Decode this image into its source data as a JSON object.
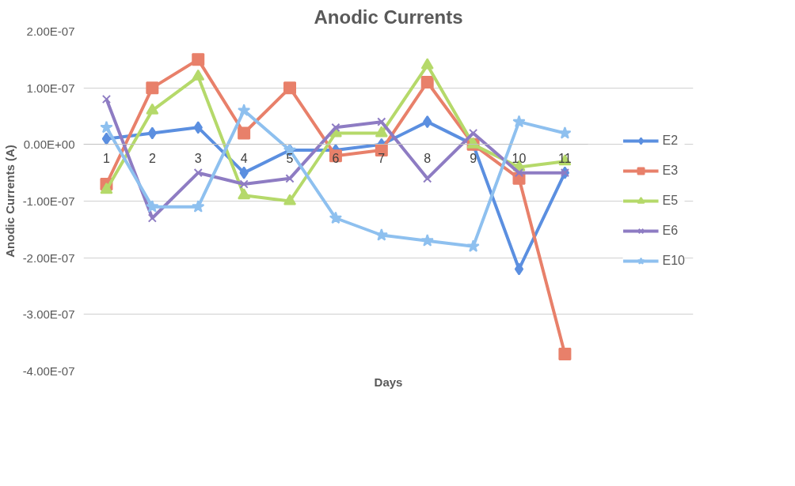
{
  "chart_data": {
    "type": "line",
    "title": "Anodic Currents",
    "xlabel": "Days",
    "ylabel": "Anodic Currents (A)",
    "categories": [
      "1",
      "2",
      "3",
      "4",
      "5",
      "6",
      "7",
      "8",
      "9",
      "10",
      "11"
    ],
    "series": [
      {
        "name": "E2",
        "color": "#5b8fe0",
        "marker": "diamond",
        "values": [
          1e-08,
          2e-08,
          3e-08,
          -5e-08,
          -1e-08,
          -1e-08,
          0.0,
          4e-08,
          0.0,
          -2.2e-07,
          -5e-08
        ]
      },
      {
        "name": "E3",
        "color": "#e8806a",
        "marker": "square",
        "values": [
          -7e-08,
          1e-07,
          1.5e-07,
          2e-08,
          1e-07,
          -2e-08,
          -1e-08,
          1.1e-07,
          0.0,
          -6e-08,
          -3.7e-07
        ]
      },
      {
        "name": "E5",
        "color": "#b5d96a",
        "marker": "triangle",
        "values": [
          -8e-08,
          6e-08,
          1.2e-07,
          -9e-08,
          -1e-07,
          2e-08,
          2e-08,
          1.4e-07,
          0.0,
          -4e-08,
          -3e-08
        ]
      },
      {
        "name": "E6",
        "color": "#8e7cc3",
        "marker": "cross",
        "values": [
          8e-08,
          -1.3e-07,
          -5e-08,
          -7e-08,
          -6e-08,
          3e-08,
          4e-08,
          -6e-08,
          2e-08,
          -5e-08,
          -5e-08
        ]
      },
      {
        "name": "E10",
        "color": "#8ec0ef",
        "marker": "star",
        "values": [
          3e-08,
          -1.1e-07,
          -1.1e-07,
          6e-08,
          -1e-08,
          -1.3e-07,
          -1.6e-07,
          -1.7e-07,
          -1.8e-07,
          4e-08,
          2e-08
        ]
      }
    ],
    "ylim": [
      -4e-07,
      2e-07
    ],
    "yticks": [
      {
        "value": -4e-07,
        "label": "-4.00E-07"
      },
      {
        "value": -3e-07,
        "label": "-3.00E-07"
      },
      {
        "value": -2e-07,
        "label": "-2.00E-07"
      },
      {
        "value": -1e-07,
        "label": "-1.00E-07"
      },
      {
        "value": 0,
        "label": "0.00E+00"
      },
      {
        "value": 1e-07,
        "label": "1.00E-07"
      },
      {
        "value": 2e-07,
        "label": "2.00E-07"
      }
    ],
    "grid": "y",
    "legend": "right",
    "line_style": "solid"
  }
}
